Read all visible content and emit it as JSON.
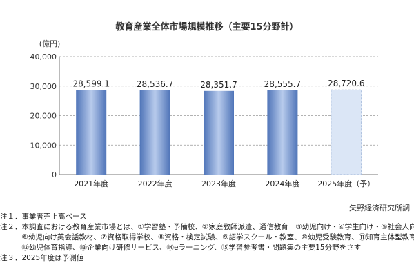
{
  "chart_data": {
    "type": "bar",
    "title": "教育産業全体市場規模推移（主要15分野計）",
    "unit_label": "(億円)",
    "categories": [
      "2021年度",
      "2022年度",
      "2023年度",
      "2024年度",
      "2025年度（予）"
    ],
    "values": [
      28599.1,
      28536.7,
      28351.7,
      28555.7,
      28720.6
    ],
    "value_labels": [
      "28,599.1",
      "28,536.7",
      "28,351.7",
      "28,555.7",
      "28,720.6"
    ],
    "forecast_flags": [
      false,
      false,
      false,
      false,
      true
    ],
    "ylim": [
      0,
      40000
    ],
    "yticks": [
      0,
      10000,
      20000,
      30000,
      40000
    ],
    "ytick_labels": [
      "0",
      "10,000",
      "20,000",
      "30,000",
      "40,000"
    ],
    "grid": true,
    "legend": "none",
    "colors": {
      "actual": "#5b7fc0",
      "actual_light": "#a9c0e6",
      "forecast": "#dbe6f6",
      "forecast_border": "#9fb4d6"
    }
  },
  "source": "矢野経済研究所調",
  "notes": [
    "注１．事業者売上高ベース",
    "注２．本調査における教育産業市場とは、①学習塾・予備校、②家庭教師派遣、通信教育　③幼児向け・④学生向け・⑤社会人向け",
    "　　　⑥幼児向け英会話教材、⑦資格取得学校、⑧資格・検定試験、⑨語学スクール・教室、⑩幼児受験教育、⑪知育主体型教育、",
    "　　　⑫幼児体育指導、⑬企業向け研修サービス、⑭eラーニング、⑮学習参考書・問題集の主要15分野をさす",
    "注３．2025年度は予測値"
  ]
}
